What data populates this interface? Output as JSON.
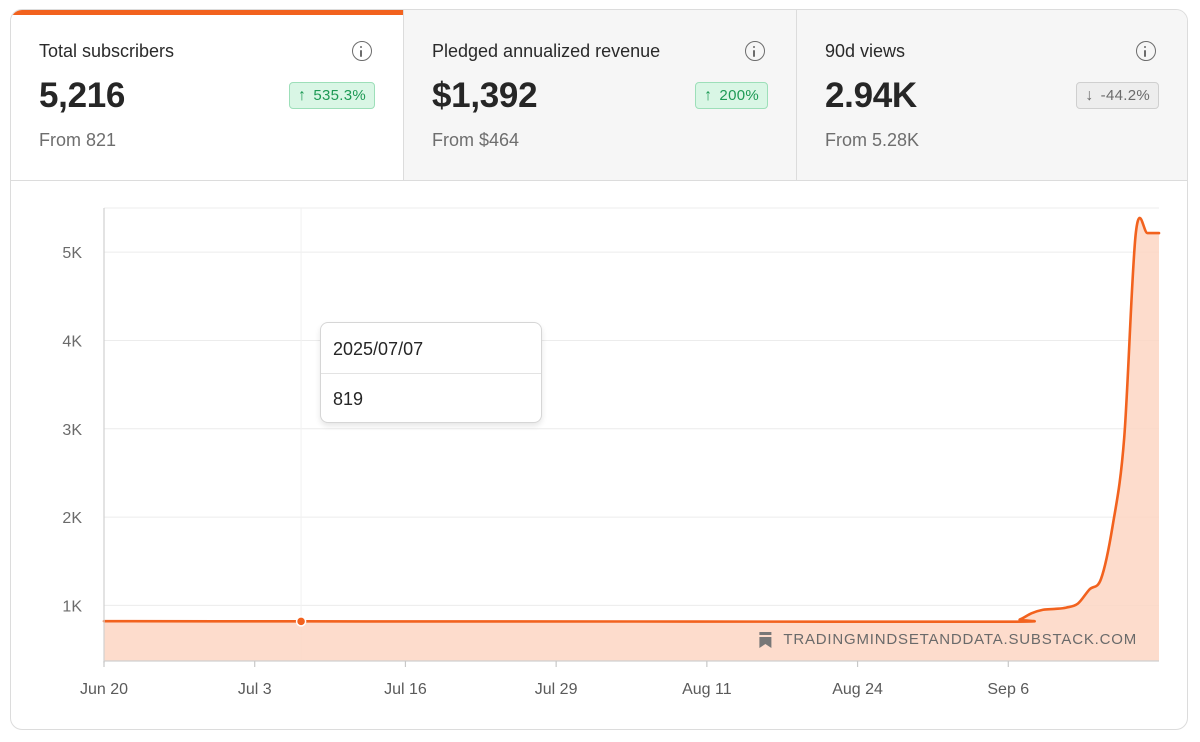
{
  "stats": [
    {
      "label": "Total subscribers",
      "value": "5,216",
      "change": "535.3%",
      "trend": "up",
      "from": "From 821",
      "active": true
    },
    {
      "label": "Pledged annualized revenue",
      "value": "$1,392",
      "change": "200%",
      "trend": "up",
      "from": "From $464",
      "active": false
    },
    {
      "label": "90d views",
      "value": "2.94K",
      "change": "-44.2%",
      "trend": "down",
      "from": "From 5.28K",
      "active": false
    }
  ],
  "icons": {
    "info": "info-icon",
    "up": "arrow-up-icon",
    "down": "arrow-down-icon",
    "watermark": "bookmark-icon"
  },
  "colors": {
    "accent": "#f2621e",
    "area_fill": "#fdd6c3",
    "up_green": "#1e9a55",
    "down_gray": "#6b6b6b"
  },
  "tooltip": {
    "date": "2025/07/07",
    "value": "819"
  },
  "watermark": "TRADINGMINDSETANDDATA.SUBSTACK.COM",
  "chart_data": {
    "type": "area",
    "x_tick_labels": [
      "Jun 20",
      "Jul 3",
      "Jul 16",
      "Jul 29",
      "Aug 11",
      "Aug 24",
      "Sep 6"
    ],
    "y_tick_labels": [
      "1K",
      "2K",
      "3K",
      "4K",
      "5K"
    ],
    "y_ticks": [
      1000,
      2000,
      3000,
      4000,
      5000
    ],
    "ylim": [
      370,
      5500
    ],
    "x_start": "2025-06-20",
    "x_end": "2025-09-19",
    "grid": true,
    "series": [
      {
        "name": "",
        "points": [
          [
            "2025-06-20",
            821
          ],
          [
            "2025-07-07",
            819
          ],
          [
            "2025-07-20",
            818
          ],
          [
            "2025-08-10",
            817
          ],
          [
            "2025-09-06",
            815
          ],
          [
            "2025-09-07",
            840
          ],
          [
            "2025-09-08",
            910
          ],
          [
            "2025-09-09",
            950
          ],
          [
            "2025-09-10",
            960
          ],
          [
            "2025-09-11",
            975
          ],
          [
            "2025-09-12",
            1020
          ],
          [
            "2025-09-13",
            1180
          ],
          [
            "2025-09-14",
            1300
          ],
          [
            "2025-09-15",
            1900
          ],
          [
            "2025-09-16",
            2900
          ],
          [
            "2025-09-17",
            5216
          ],
          [
            "2025-09-18",
            5216
          ],
          [
            "2025-09-19",
            5216
          ]
        ]
      }
    ],
    "highlight": {
      "x": "2025-07-07",
      "y": 819
    }
  }
}
